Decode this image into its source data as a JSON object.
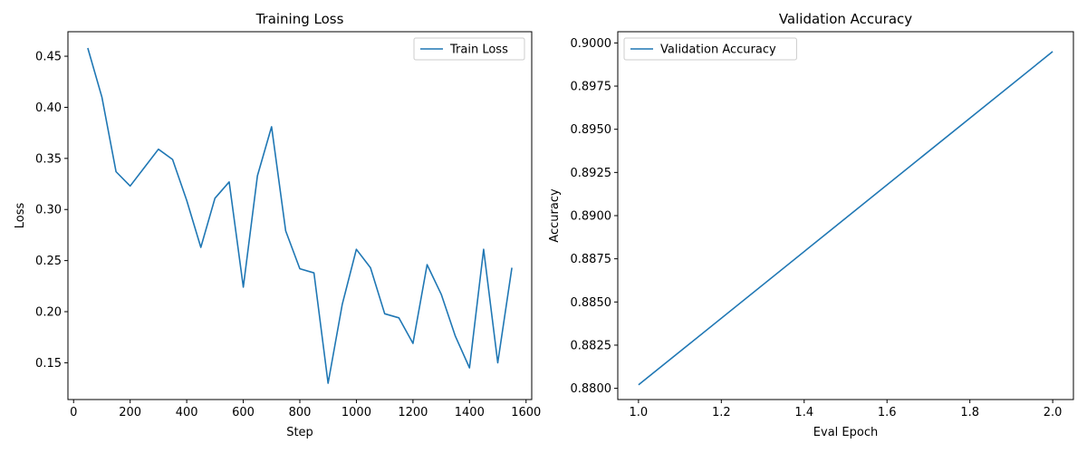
{
  "chart_data": [
    {
      "type": "line",
      "title": "Training Loss",
      "xlabel": "Step",
      "ylabel": "Loss",
      "xlim": [
        -20,
        1620
      ],
      "ylim": [
        0.114,
        0.474
      ],
      "xticks": [
        0,
        200,
        400,
        600,
        800,
        1000,
        1200,
        1400,
        1600
      ],
      "yticks": [
        0.15,
        0.2,
        0.25,
        0.3,
        0.35,
        0.4,
        0.45
      ],
      "ytick_labels": [
        "0.15",
        "0.20",
        "0.25",
        "0.30",
        "0.35",
        "0.40",
        "0.45"
      ],
      "grid": false,
      "legend_position": "upper right",
      "series": [
        {
          "name": "Train Loss",
          "color": "#1f77b4",
          "x": [
            50,
            100,
            150,
            200,
            250,
            300,
            350,
            400,
            450,
            500,
            550,
            600,
            650,
            700,
            750,
            800,
            850,
            900,
            950,
            1000,
            1050,
            1100,
            1150,
            1200,
            1250,
            1300,
            1350,
            1400,
            1450,
            1500,
            1550
          ],
          "y": [
            0.458,
            0.41,
            0.337,
            0.323,
            0.341,
            0.359,
            0.349,
            0.309,
            0.263,
            0.311,
            0.327,
            0.224,
            0.333,
            0.381,
            0.279,
            0.242,
            0.238,
            0.13,
            0.207,
            0.261,
            0.243,
            0.198,
            0.194,
            0.169,
            0.246,
            0.217,
            0.176,
            0.145,
            0.261,
            0.15,
            0.243
          ]
        }
      ]
    },
    {
      "type": "line",
      "title": "Validation Accuracy",
      "xlabel": "Eval Epoch",
      "ylabel": "Accuracy",
      "xlim": [
        0.95,
        2.05
      ],
      "ylim": [
        0.87935,
        0.90065
      ],
      "xticks": [
        1.0,
        1.2,
        1.4,
        1.6,
        1.8,
        2.0
      ],
      "xtick_labels": [
        "1.0",
        "1.2",
        "1.4",
        "1.6",
        "1.8",
        "2.0"
      ],
      "yticks": [
        0.88,
        0.8825,
        0.885,
        0.8875,
        0.89,
        0.8925,
        0.895,
        0.8975,
        0.9
      ],
      "ytick_labels": [
        "0.8800",
        "0.8825",
        "0.8850",
        "0.8875",
        "0.8900",
        "0.8925",
        "0.8950",
        "0.8975",
        "0.9000"
      ],
      "grid": false,
      "legend_position": "upper left",
      "series": [
        {
          "name": "Validation Accuracy",
          "color": "#1f77b4",
          "x": [
            1.0,
            2.0
          ],
          "y": [
            0.8802,
            0.8995
          ]
        }
      ]
    }
  ]
}
